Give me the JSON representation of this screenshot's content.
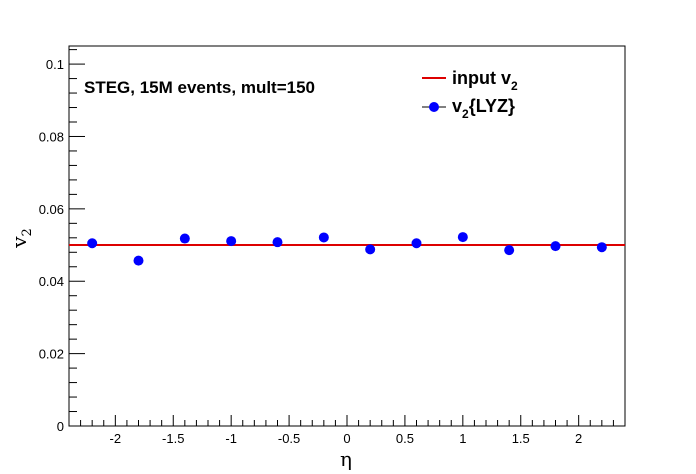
{
  "chart_data": {
    "type": "scatter",
    "annotation": "STEG, 15M events, mult=150",
    "xlabel": "η",
    "ylabel": {
      "base": "v",
      "sub": "2"
    },
    "xlim": [
      -2.4,
      2.4
    ],
    "ylim": [
      0,
      0.105
    ],
    "x_ticks": [
      -2,
      -1.5,
      -1,
      -0.5,
      0,
      0.5,
      1,
      1.5,
      2
    ],
    "x_tick_labels": [
      "-2",
      "-1.5",
      "-1",
      "-0.5",
      "0",
      "0.5",
      "1",
      "1.5",
      "2"
    ],
    "y_ticks": [
      0,
      0.02,
      0.04,
      0.06,
      0.08,
      0.1
    ],
    "y_tick_labels": [
      "0",
      "0.02",
      "0.04",
      "0.06",
      "0.08",
      "0.1"
    ],
    "grid": false,
    "legend_placement": "top-right",
    "series": [
      {
        "name": {
          "base": "input v",
          "sub": "2"
        },
        "kind": "line",
        "color": "#dd0000",
        "x": [
          -2.4,
          2.4
        ],
        "y": [
          0.05,
          0.05
        ]
      },
      {
        "name": {
          "base": "v",
          "sub": "2",
          "rest": "{LYZ}"
        },
        "kind": "points",
        "color": "#0000ff",
        "x": [
          -2.2,
          -1.8,
          -1.4,
          -1.0,
          -0.6,
          -0.2,
          0.2,
          0.6,
          1.0,
          1.4,
          1.8,
          2.2
        ],
        "y": [
          0.0505,
          0.0457,
          0.0518,
          0.0511,
          0.0508,
          0.0521,
          0.0488,
          0.0505,
          0.0522,
          0.0486,
          0.0497,
          0.0494
        ]
      }
    ]
  }
}
